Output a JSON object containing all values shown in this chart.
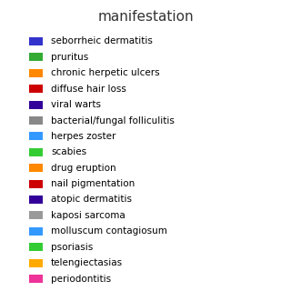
{
  "title": "manifestation",
  "background_color": "#ffffff",
  "items": [
    {
      "label": "seborrheic dermatitis",
      "color": "#3333cc"
    },
    {
      "label": "pruritus",
      "color": "#33aa33"
    },
    {
      "label": "chronic herpetic ulcers",
      "color": "#ff8800"
    },
    {
      "label": "diffuse hair loss",
      "color": "#cc0000"
    },
    {
      "label": "viral warts",
      "color": "#330099"
    },
    {
      "label": "bacterial/fungal folliculitis",
      "color": "#888888"
    },
    {
      "label": "herpes zoster",
      "color": "#3399ff"
    },
    {
      "label": "scabies",
      "color": "#33cc33"
    },
    {
      "label": "drug eruption",
      "color": "#ff8800"
    },
    {
      "label": "nail pigmentation",
      "color": "#cc0000"
    },
    {
      "label": "atopic dermatitis",
      "color": "#330099"
    },
    {
      "label": "kaposi sarcoma",
      "color": "#999999"
    },
    {
      "label": "molluscum contagiosum",
      "color": "#3399ff"
    },
    {
      "label": "psoriasis",
      "color": "#33cc33"
    },
    {
      "label": "telengiectasias",
      "color": "#ffaa00"
    },
    {
      "label": "periodontitis",
      "color": "#ee3399"
    }
  ],
  "title_fontsize": 11,
  "label_fontsize": 7.5,
  "square_size": 0.008
}
